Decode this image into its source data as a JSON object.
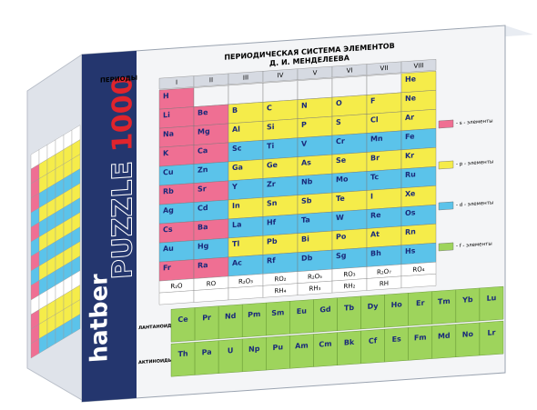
{
  "brand": "hatber",
  "product": {
    "name": "PUZZLE",
    "count": "1000"
  },
  "header": {
    "title": "ПЕРИОДИЧЕСКАЯ СИСТЕМА ЭЛЕМЕНТОВ",
    "subtitle": "Д. И. МЕНДЕЛЕЕВА",
    "periods": "ПЕРИОДЫ"
  },
  "groups": [
    "I",
    "II",
    "III",
    "IV",
    "V",
    "VI",
    "VII",
    "VIII"
  ],
  "table": {
    "rows": [
      [
        "H",
        null,
        null,
        null,
        null,
        null,
        null,
        "He"
      ],
      [
        "Li",
        "Be",
        "B",
        "C",
        "N",
        "O",
        "F",
        "Ne"
      ],
      [
        "Na",
        "Mg",
        "Al",
        "Si",
        "P",
        "S",
        "Cl",
        "Ar"
      ],
      [
        "K",
        "Ca",
        "Sc",
        "Ti",
        "V",
        "Cr",
        "Mn",
        "Fe"
      ],
      [
        "Cu",
        "Zn",
        "Ga",
        "Ge",
        "As",
        "Se",
        "Br",
        "Kr"
      ],
      [
        "Rb",
        "Sr",
        "Y",
        "Zr",
        "Nb",
        "Mo",
        "Tc",
        "Ru"
      ],
      [
        "Ag",
        "Cd",
        "In",
        "Sn",
        "Sb",
        "Te",
        "I",
        "Xe"
      ],
      [
        "Cs",
        "Ba",
        "La",
        "Hf",
        "Ta",
        "W",
        "Re",
        "Os"
      ],
      [
        "Au",
        "Hg",
        "Tl",
        "Pb",
        "Bi",
        "Po",
        "At",
        "Rn"
      ],
      [
        "Fr",
        "Ra",
        "Ac",
        "Rf",
        "Db",
        "Sg",
        "Bh",
        "Hs"
      ]
    ]
  },
  "oxides": [
    "R₂O",
    "RO",
    "R₂O₃",
    "RO₂",
    "R₂O₅",
    "RO₃",
    "R₂O₇",
    "RO₄"
  ],
  "hydrides": [
    null,
    null,
    null,
    "RH₄",
    "RH₃",
    "RH₂",
    "RH",
    null
  ],
  "lanthanides": {
    "label": "ЛАНТАНОИДЫ",
    "symbols": [
      "Ce",
      "Pr",
      "Nd",
      "Pm",
      "Sm",
      "Eu",
      "Gd",
      "Tb",
      "Dy",
      "Ho",
      "Er",
      "Tm",
      "Yb",
      "Lu"
    ]
  },
  "actinides": {
    "label": "АКТИНОИДЫ",
    "symbols": [
      "Th",
      "Pa",
      "U",
      "Np",
      "Pu",
      "Am",
      "Cm",
      "Bk",
      "Cf",
      "Es",
      "Fm",
      "Md",
      "No",
      "Lr"
    ]
  },
  "legend": [
    "- s - элементы",
    "- p - элементы",
    "- d - элементы",
    "- f - элементы"
  ]
}
